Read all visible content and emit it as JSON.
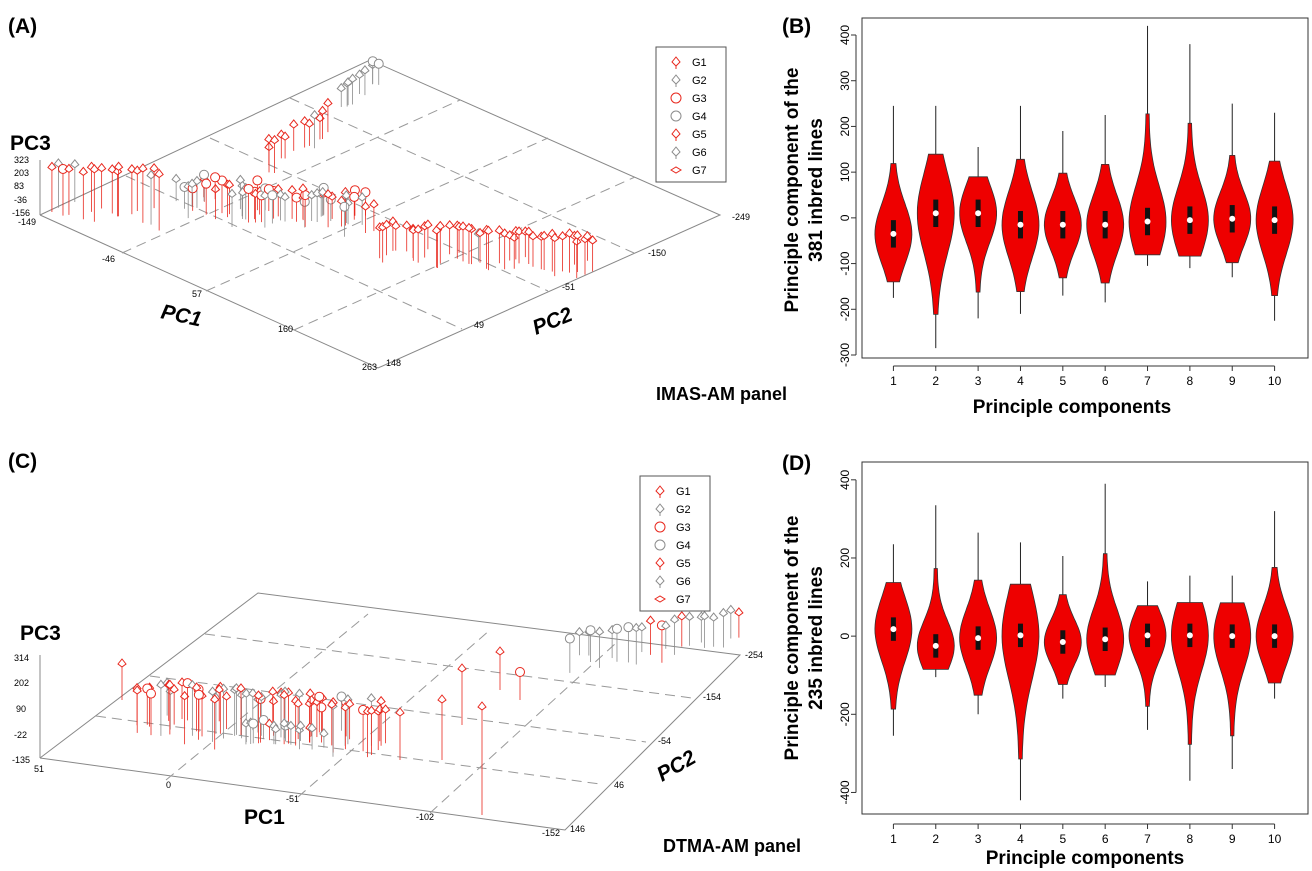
{
  "figure": {
    "panel_A": {
      "letter": "(A)",
      "panel_name": "IMAS-AM panel",
      "axes": {
        "pc1": {
          "label": "PC1",
          "ticks": [
            "-149",
            "-46",
            "57",
            "160",
            "263"
          ]
        },
        "pc2": {
          "label": "PC2",
          "ticks": [
            "148",
            "49",
            "-51",
            "-150",
            "-249"
          ]
        },
        "pc3": {
          "label": "PC3",
          "ticks": [
            "-156",
            "-36",
            "83",
            "203",
            "323"
          ]
        }
      },
      "legend": [
        "G1",
        "G2",
        "G3",
        "G4",
        "G5",
        "G6",
        "G7"
      ]
    },
    "panel_C": {
      "letter": "(C)",
      "panel_name": "DTMA-AM panel",
      "axes": {
        "pc1": {
          "label": "PC1",
          "ticks": [
            "51",
            "0",
            "-51",
            "-102",
            "-152"
          ]
        },
        "pc2": {
          "label": "PC2",
          "ticks": [
            "146",
            "46",
            "-54",
            "-154",
            "-254"
          ]
        },
        "pc3": {
          "label": "PC3",
          "ticks": [
            "-135",
            "-22",
            "90",
            "202",
            "314"
          ]
        }
      },
      "legend": [
        "G1",
        "G2",
        "G3",
        "G4",
        "G5",
        "G6",
        "G7"
      ]
    },
    "legend_colors": {
      "G1": "#e8281e",
      "G2": "#8c8c8c",
      "G3": "#e8281e",
      "G4": "#8c8c8c",
      "G5": "#e8281e",
      "G6": "#8c8c8c",
      "G7": "#e8281e"
    }
  },
  "chart_data": [
    {
      "type": "violin",
      "letter": "(B)",
      "categories": [
        "1",
        "2",
        "3",
        "4",
        "5",
        "6",
        "7",
        "8",
        "9",
        "10"
      ],
      "xlabel": "Principle components",
      "ylabel_line1": "Principle component of the",
      "ylabel_line2": "381 inbred lines",
      "ylim": [
        -300,
        400
      ],
      "yticks": [
        -300,
        -200,
        -100,
        0,
        100,
        200,
        300,
        400
      ],
      "fill_color": "#ee0000",
      "medians": [
        -35,
        10,
        10,
        -15,
        -15,
        -15,
        -8,
        -5,
        -2,
        -5
      ],
      "mins": [
        -175,
        -285,
        -220,
        -210,
        -170,
        -185,
        -105,
        -110,
        -130,
        -225
      ],
      "maxs": [
        245,
        245,
        155,
        245,
        190,
        225,
        420,
        380,
        250,
        230
      ]
    },
    {
      "type": "violin",
      "letter": "(D)",
      "categories": [
        "1",
        "2",
        "3",
        "4",
        "5",
        "6",
        "7",
        "8",
        "9",
        "10"
      ],
      "xlabel": "Principle components",
      "ylabel_line1": "Principle component of the",
      "ylabel_line2": "235 inbred lines",
      "ylim": [
        -450,
        420
      ],
      "yticks": [
        -400,
        -200,
        0,
        200,
        400
      ],
      "fill_color": "#ee0000",
      "medians": [
        18,
        -25,
        -5,
        2,
        -15,
        -8,
        2,
        2,
        0,
        0
      ],
      "mins": [
        -255,
        -105,
        -200,
        -420,
        -160,
        -130,
        -240,
        -370,
        -340,
        -160
      ],
      "maxs": [
        235,
        335,
        265,
        240,
        205,
        390,
        140,
        155,
        155,
        320
      ]
    }
  ]
}
